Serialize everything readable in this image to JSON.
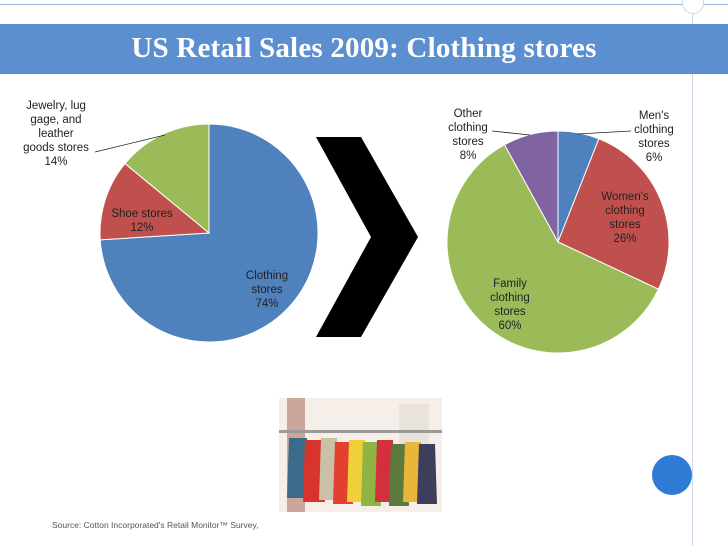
{
  "slide": {
    "title": "US Retail Sales 2009: Clothing stores",
    "source": "Source: Cotton Incorporated's Retail Monitor™ Survey,"
  },
  "chart_data": [
    {
      "type": "pie",
      "title": "",
      "categories": [
        "Clothing stores",
        "Shoe stores",
        "Jewelry, luggage, and leather goods stores"
      ],
      "values": [
        74,
        12,
        14
      ],
      "colors": [
        "#4f81bd",
        "#c0504d",
        "#9bbb59"
      ],
      "labels": [
        "Clothing\nstores\n74%",
        "Shoe stores\n12%",
        "Jewelry, lug\ngage, and\nleather\ngoods stores\n14%"
      ]
    },
    {
      "type": "pie",
      "title": "",
      "categories": [
        "Men's clothing stores",
        "Women's clothing stores",
        "Family clothing stores",
        "Other clothing stores"
      ],
      "values": [
        6,
        26,
        60,
        8
      ],
      "colors": [
        "#4f81bd",
        "#c0504d",
        "#9bbb59",
        "#8064a2"
      ],
      "labels": [
        "Men's\nclothing\nstores\n6%",
        "Women's\nclothing\nstores\n26%",
        "Family\nclothing\nstores\n60%",
        "Other\nclothing\nstores\n8%"
      ]
    }
  ],
  "colors": {
    "title_bar": "#5b8fd0",
    "arrow": "#000000",
    "badge": "#2f7ad4"
  }
}
